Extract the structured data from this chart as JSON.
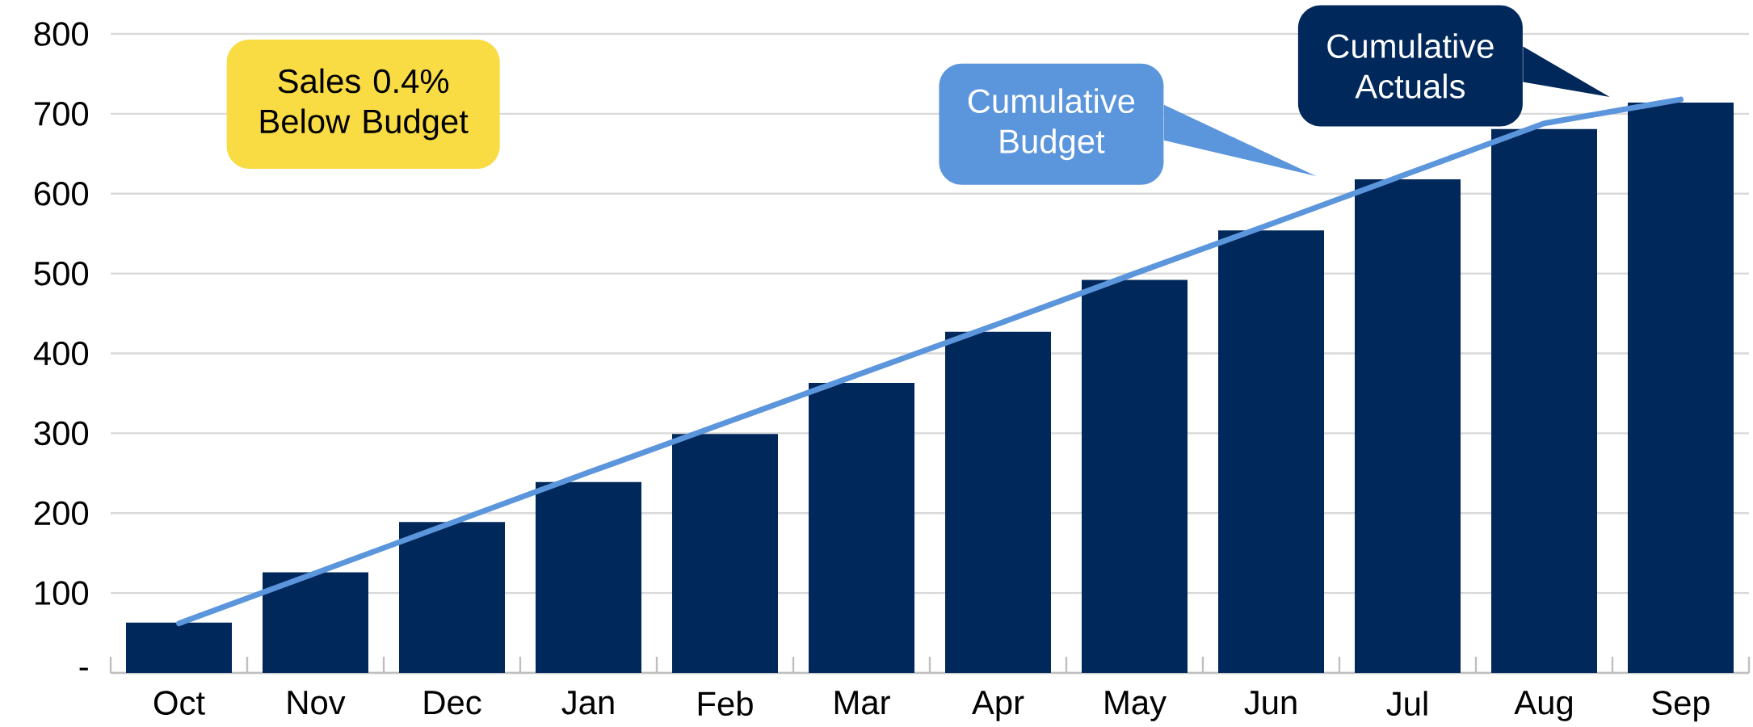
{
  "chart_data": {
    "type": "bar",
    "categories": [
      "Oct",
      "Nov",
      "Dec",
      "Jan",
      "Feb",
      "Mar",
      "Apr",
      "May",
      "Jun",
      "Jul",
      "Aug",
      "Sep"
    ],
    "series": [
      {
        "name": "Cumulative Actuals",
        "color": "#00285a",
        "values": [
          63,
          126,
          189,
          239,
          299,
          363,
          427,
          492,
          554,
          618,
          681,
          714
        ]
      },
      {
        "name": "Cumulative Budget",
        "type": "line",
        "color": "#5b95dc",
        "values": [
          62,
          125,
          188,
          251,
          313,
          375,
          437,
          500,
          562,
          625,
          688,
          718
        ]
      }
    ],
    "ylim": [
      0,
      800
    ],
    "yticks": [
      {
        "value": 0,
        "label": "-"
      },
      100,
      200,
      300,
      400,
      500,
      600,
      700,
      800
    ],
    "grid": "y",
    "legend": "top right",
    "annotations": [
      "Sales 0.4% Below Budget"
    ]
  }
}
